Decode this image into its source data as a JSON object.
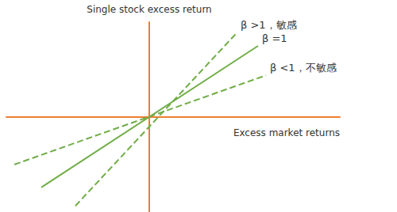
{
  "chart_data": {
    "type": "line",
    "x_label": "Excess market returns",
    "y_label": "Single stock excess return",
    "xlim": [
      -1.8,
      2.4
    ],
    "ylim": [
      -2,
      2
    ],
    "tick_labels": false,
    "grid": false,
    "series": [
      {
        "name": "β >1，敏感",
        "color": "#70ad47",
        "line_style": "dashed",
        "x": [
          -0.93,
          1.1
        ],
        "values": [
          -1.87,
          1.77
        ]
      },
      {
        "name": "β =1",
        "color": "#70ad47",
        "line_style": "solid",
        "x": [
          -1.36,
          1.37
        ],
        "values": [
          -1.48,
          1.5
        ]
      },
      {
        "name": "β <1，不敏感",
        "color": "#70ad47",
        "line_style": "dashed",
        "x": [
          -1.7,
          1.47
        ],
        "values": [
          -1.0,
          0.88
        ]
      }
    ]
  }
}
